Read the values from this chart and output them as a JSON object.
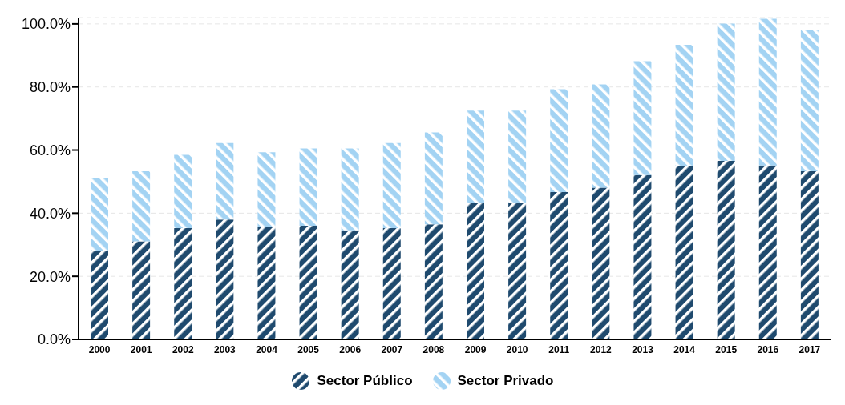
{
  "chart_data": {
    "type": "bar",
    "stacked": true,
    "categories": [
      "2000",
      "2001",
      "2002",
      "2003",
      "2004",
      "2005",
      "2006",
      "2007",
      "2008",
      "2009",
      "2010",
      "2011",
      "2012",
      "2013",
      "2014",
      "2015",
      "2016",
      "2017"
    ],
    "series": [
      {
        "name": "Sector Público",
        "color": "#1f4a6e",
        "values": [
          28.0,
          31.1,
          35.3,
          38.0,
          35.5,
          36.0,
          34.6,
          35.3,
          36.5,
          43.4,
          43.4,
          46.7,
          48.1,
          52.1,
          54.8,
          56.6,
          55.1,
          53.3
        ]
      },
      {
        "name": "Sector Privado",
        "color": "#a3d3f3",
        "values": [
          23.1,
          22.2,
          23.2,
          24.2,
          23.8,
          24.5,
          25.9,
          26.9,
          29.1,
          29.1,
          29.1,
          32.6,
          32.7,
          36.1,
          38.6,
          43.5,
          46.5,
          44.7
        ]
      }
    ],
    "ylim": [
      0,
      102
    ],
    "yticks": [
      {
        "value": 0,
        "label": "0.0%"
      },
      {
        "value": 20,
        "label": "20.0%"
      },
      {
        "value": 40,
        "label": "40.0%"
      },
      {
        "value": 60,
        "label": "60.0%"
      },
      {
        "value": 80,
        "label": "80.0%"
      },
      {
        "value": 100,
        "label": "100.0%"
      }
    ],
    "grid": "y",
    "legend": "bottom"
  }
}
